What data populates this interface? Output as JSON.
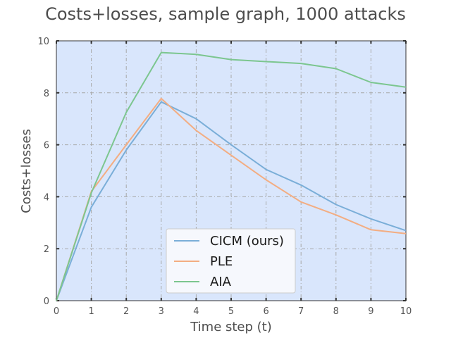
{
  "chart_data": {
    "type": "line",
    "title": "Costs+losses, sample graph, 1000 attacks",
    "xlabel": "Time step (t)",
    "ylabel": "Costs+losses",
    "x": [
      0,
      1,
      2,
      3,
      4,
      5,
      6,
      7,
      8,
      9,
      10
    ],
    "xlim": [
      0,
      10
    ],
    "ylim": [
      0,
      10
    ],
    "xticks": [
      0,
      1,
      2,
      3,
      4,
      5,
      6,
      7,
      8,
      9,
      10
    ],
    "yticks": [
      0,
      2,
      4,
      6,
      8,
      10
    ],
    "grid": true,
    "legend_position": "lower-center",
    "background_color": "#d9e6fc",
    "series": [
      {
        "name": "CICM (ours)",
        "color": "#7aaed8",
        "values": [
          0.0,
          3.6,
          5.8,
          7.65,
          7.0,
          6.0,
          5.05,
          4.45,
          3.7,
          3.15,
          2.7
        ]
      },
      {
        "name": "PLE",
        "color": "#f3ad82",
        "values": [
          0.0,
          4.2,
          6.0,
          7.78,
          6.55,
          5.6,
          4.65,
          3.8,
          3.3,
          2.73,
          2.58
        ]
      },
      {
        "name": "AIA",
        "color": "#7cc68f",
        "values": [
          0.0,
          4.15,
          7.25,
          9.55,
          9.48,
          9.28,
          9.2,
          9.13,
          8.93,
          8.4,
          8.22
        ]
      }
    ]
  }
}
